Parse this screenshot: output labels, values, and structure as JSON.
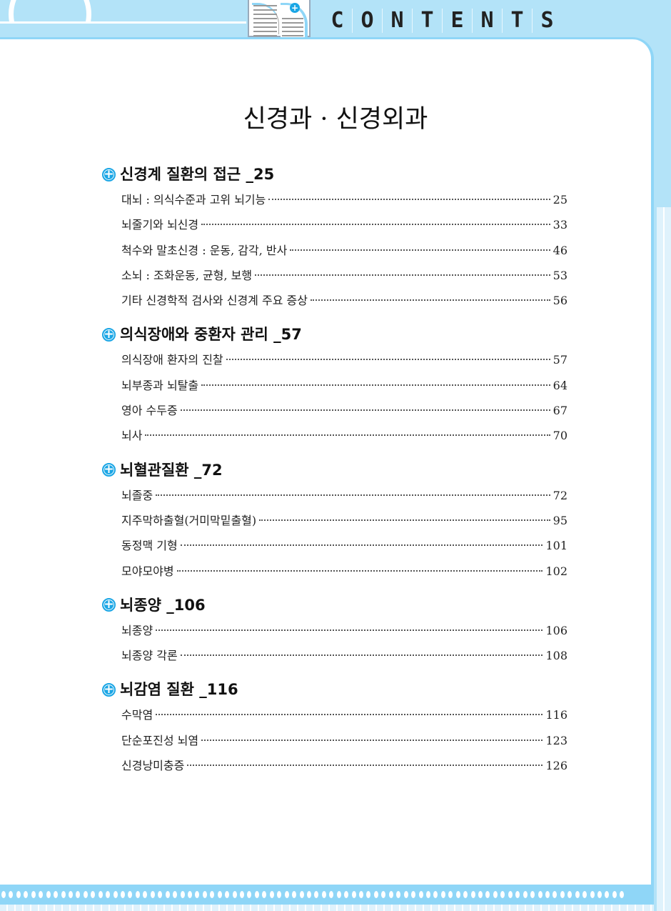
{
  "header": {
    "label_letters": [
      "C",
      "O",
      "N",
      "T",
      "E",
      "N",
      "T",
      "S"
    ]
  },
  "title": "신경과 · 신경외과",
  "colors": {
    "accent": "#1ba6e5",
    "band": "#b3e3f8",
    "frame": "#8fd6f7"
  },
  "sections": [
    {
      "title": "신경계 질환의 접근 _25",
      "items": [
        {
          "label": "대뇌 : 의식수준과 고위 뇌기능",
          "page": "25"
        },
        {
          "label": "뇌줄기와 뇌신경",
          "page": "33"
        },
        {
          "label": "척수와 말초신경 : 운동, 감각, 반사",
          "page": "46"
        },
        {
          "label": "소뇌 : 조화운동, 균형, 보행",
          "page": "53"
        },
        {
          "label": "기타 신경학적 검사와 신경계 주요 증상",
          "page": "56"
        }
      ]
    },
    {
      "title": "의식장애와 중환자 관리 _57",
      "items": [
        {
          "label": "의식장애 환자의 진찰",
          "page": "57"
        },
        {
          "label": "뇌부종과 뇌탈출",
          "page": "64"
        },
        {
          "label": "영아 수두증",
          "page": "67"
        },
        {
          "label": "뇌사",
          "page": "70"
        }
      ]
    },
    {
      "title": "뇌혈관질환 _72",
      "items": [
        {
          "label": "뇌졸중",
          "page": "72"
        },
        {
          "label": "지주막하출혈(거미막밑출혈)",
          "page": "95"
        },
        {
          "label": "동정맥 기형",
          "page": "101"
        },
        {
          "label": "모야모야병",
          "page": "102"
        }
      ]
    },
    {
      "title": "뇌종양 _106",
      "items": [
        {
          "label": "뇌종양",
          "page": "106"
        },
        {
          "label": "뇌종양 각론",
          "page": "108"
        }
      ]
    },
    {
      "title": "뇌감염 질환 _116",
      "items": [
        {
          "label": "수막염",
          "page": "116"
        },
        {
          "label": "단순포진성 뇌염",
          "page": "123"
        },
        {
          "label": "신경낭미충증",
          "page": "126"
        }
      ]
    }
  ]
}
